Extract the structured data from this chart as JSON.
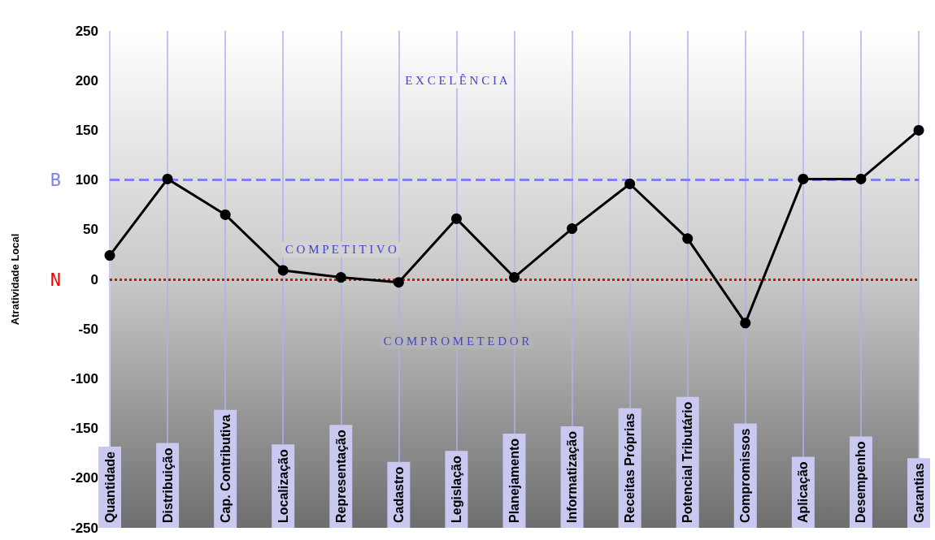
{
  "chart_data": {
    "type": "line",
    "ylabel": "Atratividade Local",
    "categories": [
      "Quantidade",
      "Distribuição",
      "Cap. Contributiva",
      "Localização",
      "Representação",
      "Cadastro",
      "Legislação",
      "Planejamento",
      "Informatização",
      "Receitas Próprias",
      "Potencial Tributário",
      "Compromissos",
      "Aplicação",
      "Desempenho",
      "Garantias"
    ],
    "series": [
      {
        "color": "#000000",
        "values": [
          24,
          101,
          65,
          9,
          2,
          -3,
          61,
          2,
          51,
          96,
          41,
          -44,
          101,
          101,
          150
        ]
      }
    ],
    "ylim": [
      -250,
      250
    ],
    "yticks": [
      -250,
      -200,
      -150,
      -100,
      -50,
      0,
      50,
      100,
      150,
      200,
      250
    ],
    "grid": "x",
    "marker": "circle",
    "line_style": "solid",
    "ref_lines": [
      {
        "axis": "y",
        "value": 100,
        "label": "B",
        "color": "#8080f0",
        "line_style": "dashed"
      },
      {
        "axis": "y",
        "value": 0,
        "label": "N",
        "color": "#ff0000",
        "line_style": "dotted"
      }
    ],
    "annotations": [
      "E X C E L Ê N C I A",
      "C O M P E T I T I V O",
      "C O M P R O M E T E D O R"
    ]
  }
}
